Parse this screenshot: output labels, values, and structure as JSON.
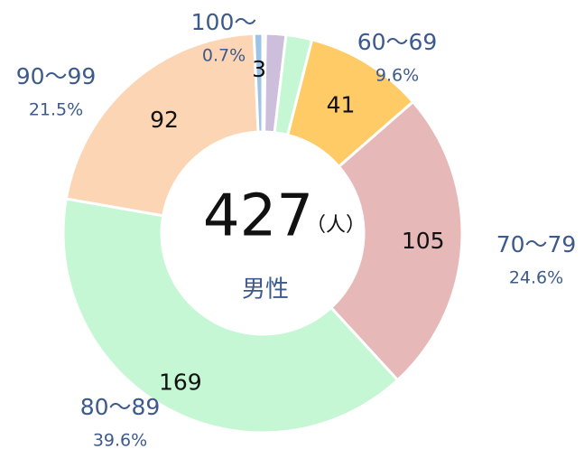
{
  "chart_data": {
    "type": "donut",
    "categories": [
      null,
      null,
      null,
      "60～69",
      "70～79",
      "80～89",
      "90～99",
      "100～"
    ],
    "values": [
      1,
      7,
      9,
      41,
      105,
      169,
      92,
      3
    ],
    "percent_labels": [
      null,
      null,
      null,
      "9.6%",
      "24.6%",
      "39.6%",
      "21.5%",
      "0.7%"
    ],
    "colors": [
      "#c0504d",
      "#cdbfdc",
      "#c6f7d4",
      "#ffcb66",
      "#e6b9b8",
      "#c6f7d4",
      "#fcd5b5",
      "#9dc3e6"
    ],
    "center_value": 427,
    "center_unit": "（人）",
    "center_label": "男性"
  }
}
